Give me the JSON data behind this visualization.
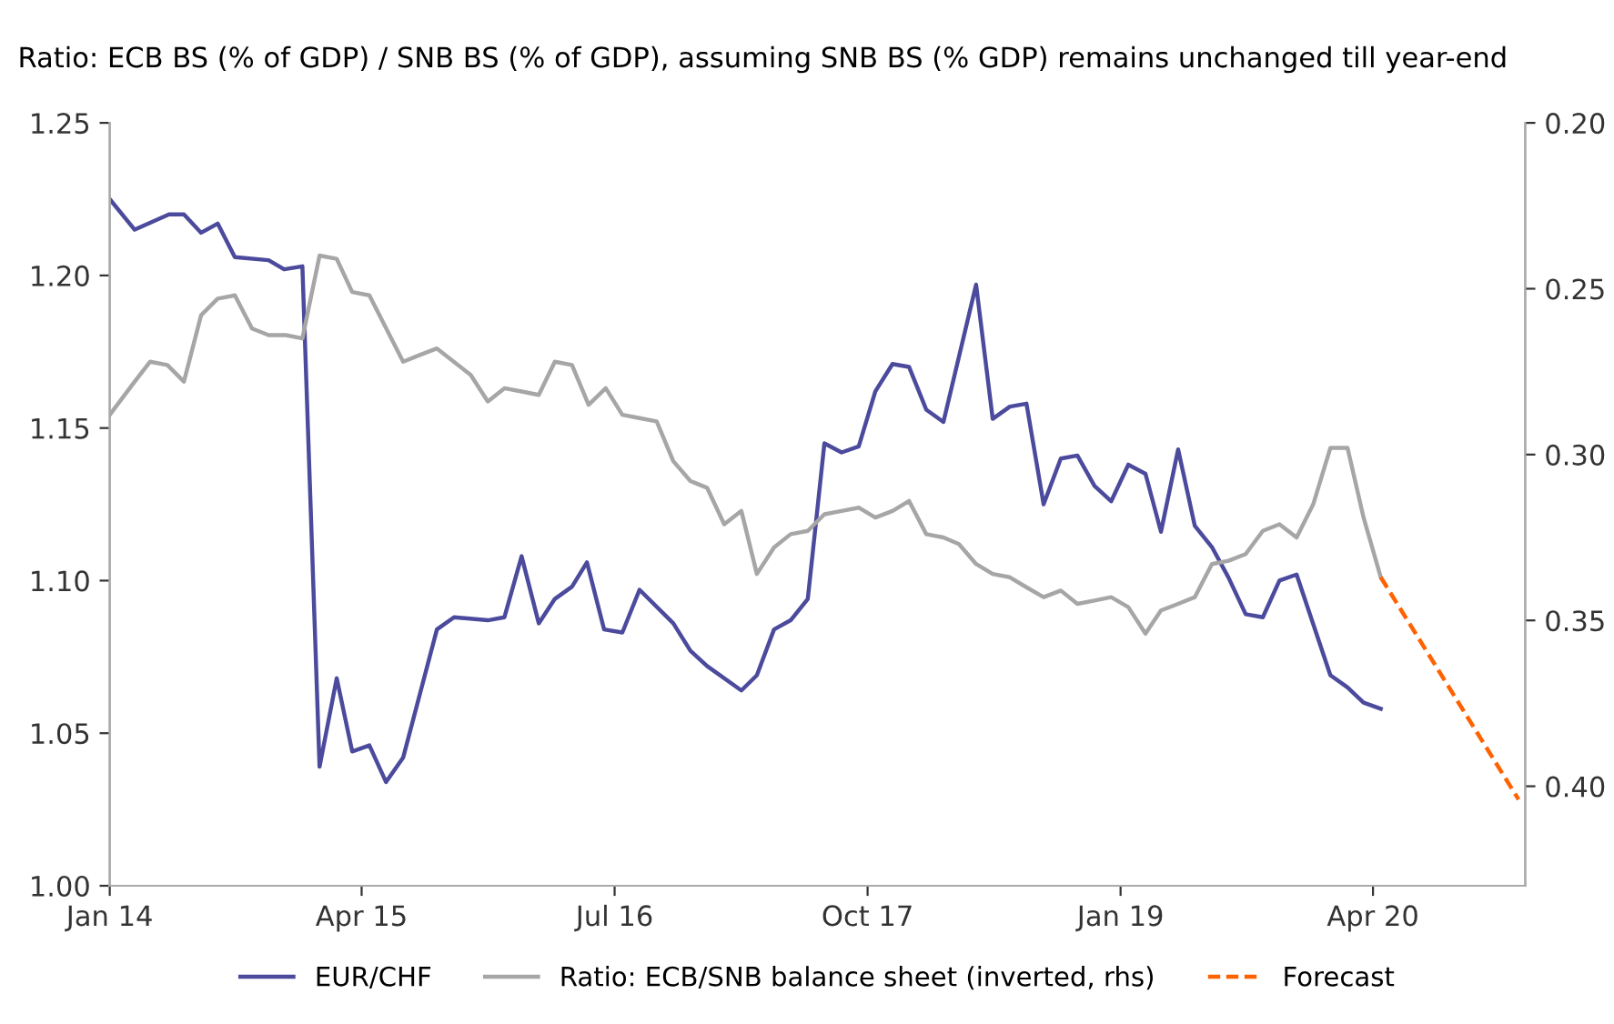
{
  "chart_data": {
    "type": "line",
    "title": "Ratio: ECB BS (% of GDP) / SNB BS (% of GDP), assuming SNB BS (% GDP) remains unchanged till year-end",
    "xlim": [
      "2014-01-01",
      "2021-01-01"
    ],
    "xticks": [
      {
        "value": "2014-01-01",
        "label": "Jan 14"
      },
      {
        "value": "2015-04-01",
        "label": "Apr 15"
      },
      {
        "value": "2016-07-01",
        "label": "Jul 16"
      },
      {
        "value": "2017-10-01",
        "label": "Oct 17"
      },
      {
        "value": "2019-01-01",
        "label": "Jan 19"
      },
      {
        "value": "2020-04-01",
        "label": "Apr 20"
      }
    ],
    "ylim": [
      1.0,
      1.25
    ],
    "yticks": [
      {
        "value": 1.0,
        "label": "1.00"
      },
      {
        "value": 1.05,
        "label": "1.05"
      },
      {
        "value": 1.1,
        "label": "1.10"
      },
      {
        "value": 1.15,
        "label": "1.15"
      },
      {
        "value": 1.2,
        "label": "1.20"
      },
      {
        "value": 1.25,
        "label": "1.25"
      }
    ],
    "y2lim": [
      0.43,
      0.2
    ],
    "y2ticks": [
      {
        "value": 0.2,
        "label": "0.20"
      },
      {
        "value": 0.25,
        "label": "0.25"
      },
      {
        "value": 0.3,
        "label": "0.30"
      },
      {
        "value": 0.35,
        "label": "0.35"
      },
      {
        "value": 0.4,
        "label": "0.40"
      }
    ],
    "legend": "bottom",
    "grid": false,
    "marker": "none",
    "series": [
      {
        "name": "EUR/CHF",
        "color": "#4b4a9c",
        "line_style": "solid",
        "x": [
          "2014-01-01",
          "2014-02-15",
          "2014-04-18",
          "2014-05-15",
          "2014-06-15",
          "2014-07-15",
          "2014-08-15",
          "2014-10-15",
          "2014-11-12",
          "2014-12-15",
          "2015-01-15",
          "2015-02-15",
          "2015-03-15",
          "2015-04-15",
          "2015-05-15",
          "2015-06-15",
          "2015-08-15",
          "2015-09-15",
          "2015-11-15",
          "2015-12-15",
          "2016-01-15",
          "2016-02-15",
          "2016-03-15",
          "2016-04-15",
          "2016-05-12",
          "2016-06-12",
          "2016-07-15",
          "2016-08-15",
          "2016-10-15",
          "2016-11-15",
          "2016-12-15",
          "2017-02-15",
          "2017-03-15",
          "2017-04-15",
          "2017-05-15",
          "2017-06-15",
          "2017-07-15",
          "2017-08-15",
          "2017-09-15",
          "2017-10-15",
          "2017-11-15",
          "2017-12-15",
          "2018-01-15",
          "2018-02-15",
          "2018-04-15",
          "2018-05-15",
          "2018-06-15",
          "2018-07-15",
          "2018-08-15",
          "2018-09-15",
          "2018-10-15",
          "2018-11-15",
          "2018-12-15",
          "2019-01-15",
          "2019-02-15",
          "2019-03-15",
          "2019-04-15",
          "2019-05-15",
          "2019-06-15",
          "2019-07-15",
          "2019-08-15",
          "2019-09-15",
          "2019-10-15",
          "2019-11-15",
          "2020-01-15",
          "2020-02-15",
          "2020-03-15",
          "2020-04-15"
        ],
        "values": [
          1.225,
          1.215,
          1.22,
          1.22,
          1.214,
          1.217,
          1.206,
          1.205,
          1.202,
          1.203,
          1.039,
          1.068,
          1.044,
          1.046,
          1.034,
          1.042,
          1.084,
          1.088,
          1.087,
          1.088,
          1.108,
          1.086,
          1.094,
          1.098,
          1.106,
          1.084,
          1.083,
          1.097,
          1.086,
          1.077,
          1.072,
          1.064,
          1.069,
          1.084,
          1.087,
          1.094,
          1.145,
          1.142,
          1.144,
          1.162,
          1.171,
          1.17,
          1.156,
          1.152,
          1.197,
          1.153,
          1.157,
          1.158,
          1.125,
          1.14,
          1.141,
          1.131,
          1.126,
          1.138,
          1.135,
          1.116,
          1.143,
          1.118,
          1.111,
          1.101,
          1.089,
          1.088,
          1.1,
          1.102,
          1.069,
          1.065,
          1.06,
          1.058
        ]
      },
      {
        "name": "Ratio: ECB/SNB balance sheet (inverted, rhs)",
        "color": "#a6a6a6",
        "axis": "y2",
        "line_style": "solid",
        "x": [
          "2014-01-01",
          "2014-02-15",
          "2014-03-15",
          "2014-04-15",
          "2014-05-15",
          "2014-06-15",
          "2014-07-15",
          "2014-08-15",
          "2014-09-15",
          "2014-10-15",
          "2014-11-15",
          "2014-12-15",
          "2015-01-15",
          "2015-02-15",
          "2015-03-15",
          "2015-04-15",
          "2015-06-15",
          "2015-07-15",
          "2015-08-15",
          "2015-10-15",
          "2015-11-15",
          "2015-12-15",
          "2016-01-15",
          "2016-02-15",
          "2016-03-15",
          "2016-04-15",
          "2016-05-15",
          "2016-06-15",
          "2016-07-15",
          "2016-08-15",
          "2016-09-15",
          "2016-10-15",
          "2016-11-15",
          "2016-12-15",
          "2017-01-15",
          "2017-02-15",
          "2017-03-15",
          "2017-04-15",
          "2017-05-15",
          "2017-06-15",
          "2017-07-15",
          "2017-08-15",
          "2017-09-15",
          "2017-10-15",
          "2017-11-15",
          "2017-12-15",
          "2018-01-15",
          "2018-02-15",
          "2018-03-15",
          "2018-04-15",
          "2018-05-15",
          "2018-06-15",
          "2018-07-15",
          "2018-08-15",
          "2018-09-15",
          "2018-10-15",
          "2018-11-15",
          "2018-12-15",
          "2019-01-15",
          "2019-02-15",
          "2019-03-15",
          "2019-04-15",
          "2019-05-15",
          "2019-06-15",
          "2019-07-15",
          "2019-08-15",
          "2019-09-15",
          "2019-10-15",
          "2019-11-15",
          "2019-12-15",
          "2020-01-15",
          "2020-02-15",
          "2020-03-15",
          "2020-04-15"
        ],
        "values": [
          0.288,
          0.278,
          0.272,
          0.273,
          0.278,
          0.258,
          0.253,
          0.252,
          0.262,
          0.264,
          0.264,
          0.265,
          0.24,
          0.241,
          0.251,
          0.252,
          0.272,
          0.27,
          0.268,
          0.276,
          0.284,
          0.28,
          0.281,
          0.282,
          0.272,
          0.273,
          0.285,
          0.28,
          0.288,
          0.289,
          0.29,
          0.302,
          0.308,
          0.31,
          0.321,
          0.317,
          0.336,
          0.328,
          0.324,
          0.323,
          0.318,
          0.317,
          0.316,
          0.319,
          0.317,
          0.314,
          0.324,
          0.325,
          0.327,
          0.333,
          0.336,
          0.337,
          0.34,
          0.343,
          0.341,
          0.345,
          0.344,
          0.343,
          0.346,
          0.354,
          0.347,
          0.345,
          0.343,
          0.333,
          0.332,
          0.33,
          0.323,
          0.321,
          0.325,
          0.315,
          0.298,
          0.298,
          0.319,
          0.337
        ]
      },
      {
        "name": "Forecast",
        "color": "#ff6200",
        "axis": "y2",
        "line_style": "dashed",
        "x": [
          "2020-04-15",
          "2020-12-20"
        ],
        "values": [
          0.337,
          0.404
        ]
      }
    ]
  }
}
